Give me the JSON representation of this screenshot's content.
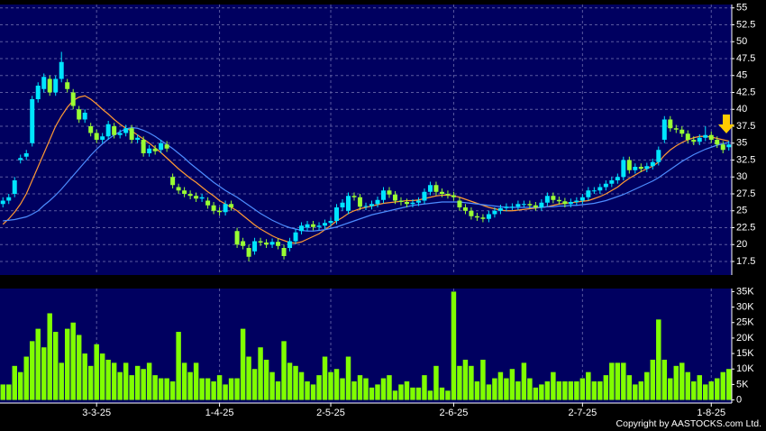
{
  "chart_data": [
    {
      "type": "candlestick",
      "open": [
        26.0,
        26.5,
        27.5,
        32.5,
        33.0,
        35.0,
        41.5,
        43.0,
        44.5,
        42.5,
        44.5,
        44.0,
        42.5,
        40.0,
        38.5,
        37.5,
        36.5,
        35.5,
        36.0,
        37.5,
        36.2,
        36.5,
        37.2,
        35.5,
        35.5,
        33.5,
        34.2,
        34.0,
        34.8,
        30.0,
        28.5,
        28.0,
        27.5,
        27.2,
        26.8,
        26.5,
        25.8,
        25.0,
        24.8,
        26.0,
        22.0,
        20.5,
        19.5,
        19.0,
        20.5,
        20.3,
        20.0,
        20.4,
        19.5,
        19.5,
        20.5,
        22.0,
        22.5,
        23.0,
        22.6,
        22.8,
        23.2,
        23.5,
        25.5,
        25.0,
        27.2,
        27.0,
        25.6,
        25.7,
        26.0,
        26.6,
        28.0,
        27.4,
        26.5,
        26.3,
        26.0,
        26.2,
        26.5,
        27.8,
        28.8,
        27.8,
        27.5,
        27.3,
        26.5,
        25.5,
        25.0,
        24.2,
        24.0,
        23.8,
        24.5,
        25.0,
        25.4,
        25.6,
        25.6,
        26.0,
        26.0,
        25.8,
        25.5,
        26.2,
        27.2,
        26.6,
        26.4,
        26.0,
        26.3,
        26.5,
        27.0,
        28.0,
        28.0,
        28.5,
        29.0,
        29.5,
        30.0,
        32.5,
        31.0,
        31.5,
        31.2,
        31.6,
        32.2,
        35.5,
        38.5,
        37.2,
        37.0,
        36.4,
        35.5,
        35.2,
        35.8,
        36.2,
        35.5,
        34.8,
        34.4
      ],
      "high": [
        27.0,
        27.5,
        30.0,
        33.3,
        34.0,
        42.0,
        44.0,
        45.3,
        45.0,
        45.0,
        48.5,
        44.5,
        43.0,
        40.5,
        40.0,
        38.0,
        37.0,
        36.5,
        38.3,
        38.0,
        37.0,
        37.7,
        37.7,
        36.3,
        36.0,
        34.7,
        34.7,
        35.5,
        35.3,
        30.5,
        29.0,
        28.5,
        28.0,
        27.7,
        27.5,
        27.0,
        26.3,
        25.5,
        26.5,
        26.5,
        22.5,
        21.0,
        20.0,
        21.0,
        21.0,
        20.8,
        20.9,
        20.9,
        20.0,
        21.0,
        22.3,
        23.3,
        23.5,
        23.5,
        23.3,
        23.7,
        24.0,
        26.0,
        26.7,
        27.7,
        27.7,
        27.5,
        26.2,
        26.5,
        27.1,
        28.5,
        28.5,
        27.9,
        27.0,
        26.8,
        26.7,
        27.0,
        28.3,
        29.3,
        29.3,
        28.3,
        28.0,
        27.8,
        27.0,
        26.0,
        25.5,
        24.7,
        24.5,
        25.0,
        25.5,
        25.9,
        26.1,
        26.1,
        26.5,
        26.5,
        26.5,
        26.3,
        26.7,
        27.7,
        27.7,
        27.1,
        26.9,
        26.8,
        27.0,
        27.5,
        28.5,
        28.5,
        29.0,
        29.5,
        30.0,
        30.5,
        33.0,
        33.0,
        32.0,
        32.0,
        32.1,
        32.7,
        34.5,
        39.0,
        39.0,
        37.7,
        37.5,
        36.9,
        36.0,
        36.3,
        37.5,
        36.7,
        36.0,
        35.3,
        35.3
      ],
      "low": [
        25.5,
        26.0,
        27.0,
        32.0,
        32.5,
        34.5,
        41.0,
        42.5,
        42.0,
        42.0,
        44.0,
        42.5,
        40.0,
        38.0,
        38.0,
        36.0,
        35.0,
        35.0,
        35.5,
        35.7,
        35.7,
        36.0,
        35.0,
        35.0,
        33.0,
        33.0,
        33.3,
        33.5,
        33.7,
        28.3,
        27.5,
        27.0,
        26.7,
        26.3,
        26.3,
        25.3,
        24.5,
        24.3,
        24.3,
        25.0,
        19.5,
        19.3,
        17.5,
        18.5,
        19.8,
        19.5,
        19.5,
        19.3,
        17.8,
        19.0,
        20.0,
        21.5,
        22.0,
        22.1,
        22.1,
        22.3,
        22.7,
        23.0,
        25.0,
        24.5,
        26.5,
        25.1,
        25.1,
        25.2,
        25.5,
        26.1,
        26.9,
        26.0,
        25.8,
        25.5,
        25.5,
        25.7,
        26.0,
        27.3,
        27.3,
        27.0,
        26.8,
        26.5,
        25.0,
        24.5,
        23.7,
        23.5,
        23.3,
        23.3,
        24.0,
        24.5,
        24.9,
        25.1,
        25.1,
        25.5,
        25.3,
        25.0,
        25.0,
        25.7,
        26.1,
        25.9,
        25.5,
        25.5,
        25.8,
        26.0,
        26.5,
        27.5,
        27.5,
        28.0,
        28.5,
        29.0,
        29.5,
        30.5,
        30.5,
        30.7,
        30.7,
        31.1,
        31.7,
        35.0,
        36.7,
        36.5,
        35.9,
        35.0,
        34.7,
        34.7,
        35.3,
        35.0,
        34.3,
        33.5,
        33.9
      ],
      "close": [
        26.5,
        27.0,
        29.5,
        32.8,
        33.5,
        41.5,
        43.5,
        44.8,
        42.5,
        44.5,
        47.0,
        43.0,
        40.5,
        38.5,
        39.5,
        36.5,
        35.5,
        36.0,
        37.8,
        36.2,
        36.5,
        37.2,
        35.5,
        35.8,
        33.5,
        34.2,
        33.8,
        35.0,
        34.2,
        28.8,
        28.0,
        27.5,
        27.2,
        26.8,
        27.0,
        25.8,
        25.0,
        24.8,
        26.0,
        25.5,
        20.0,
        19.8,
        18.2,
        20.5,
        20.3,
        20.0,
        20.4,
        19.8,
        18.3,
        20.5,
        21.8,
        22.8,
        23.0,
        22.6,
        22.8,
        23.2,
        23.5,
        25.5,
        26.2,
        27.2,
        27.0,
        25.6,
        25.7,
        26.0,
        26.6,
        28.0,
        27.4,
        26.5,
        26.3,
        26.0,
        26.2,
        26.5,
        27.8,
        28.8,
        27.8,
        27.5,
        27.3,
        27.0,
        25.5,
        25.0,
        24.2,
        24.0,
        23.8,
        24.5,
        25.0,
        25.4,
        25.6,
        25.6,
        26.0,
        26.0,
        25.8,
        25.5,
        26.2,
        27.2,
        26.6,
        26.4,
        26.0,
        26.3,
        26.5,
        27.0,
        28.0,
        28.0,
        28.5,
        29.0,
        29.5,
        30.0,
        32.5,
        31.0,
        31.5,
        31.2,
        31.6,
        32.2,
        34.0,
        38.5,
        37.2,
        37.0,
        36.4,
        35.5,
        35.2,
        35.8,
        36.2,
        35.5,
        34.8,
        34.0,
        34.8
      ],
      "up_color": "#00e5ff",
      "down_color": "#99ff33",
      "series": [
        {
          "color": "#ff9933",
          "values": [
            23.0,
            23.8,
            24.8,
            26.0,
            27.5,
            29.5,
            31.5,
            33.5,
            35.5,
            37.5,
            39.0,
            40.3,
            41.3,
            41.8,
            42.0,
            41.5,
            40.8,
            40.0,
            39.3,
            38.5,
            37.8,
            37.2,
            36.8,
            36.2,
            35.6,
            35.0,
            34.3,
            33.6,
            32.8,
            32.0,
            31.2,
            30.5,
            29.8,
            29.2,
            28.5,
            27.8,
            27.2,
            26.5,
            26.0,
            25.5,
            25.0,
            24.3,
            23.6,
            22.9,
            22.3,
            21.8,
            21.3,
            20.9,
            20.6,
            20.3,
            20.2,
            20.4,
            20.8,
            21.2,
            21.6,
            22.2,
            22.8,
            23.5,
            24.0,
            24.6,
            25.0,
            25.3,
            25.5,
            25.7,
            25.9,
            26.1,
            26.2,
            26.3,
            26.4,
            26.5,
            26.5,
            26.6,
            26.8,
            27.0,
            27.2,
            27.3,
            27.3,
            27.2,
            27.0,
            26.7,
            26.4,
            26.1,
            25.8,
            25.5,
            25.3,
            25.1,
            25.0,
            25.0,
            25.1,
            25.2,
            25.3,
            25.4,
            25.5,
            25.6,
            25.8,
            26.0,
            26.1,
            26.2,
            26.3,
            26.4,
            26.5,
            26.8,
            27.1,
            27.5,
            28.0,
            28.5,
            29.2,
            29.8,
            30.3,
            30.8,
            31.2,
            31.6,
            32.2,
            33.2,
            34.0,
            34.6,
            35.1,
            35.5,
            35.8,
            36.0,
            36.0,
            35.9,
            35.7,
            35.5,
            35.3
          ]
        },
        {
          "color": "#4d8cff",
          "values": [
            23.5,
            23.6,
            23.7,
            23.9,
            24.1,
            24.5,
            25.0,
            25.8,
            26.5,
            27.3,
            28.2,
            29.2,
            30.2,
            31.2,
            32.2,
            33.2,
            34.1,
            34.9,
            35.6,
            36.2,
            36.7,
            37.1,
            37.3,
            37.2,
            36.9,
            36.5,
            36.0,
            35.4,
            34.8,
            34.2,
            33.5,
            32.8,
            32.0,
            31.3,
            30.6,
            29.9,
            29.2,
            28.6,
            28.0,
            27.5,
            27.0,
            26.4,
            25.8,
            25.2,
            24.6,
            24.1,
            23.6,
            23.2,
            22.8,
            22.5,
            22.3,
            22.1,
            22.0,
            22.0,
            22.1,
            22.2,
            22.4,
            22.6,
            22.9,
            23.2,
            23.5,
            23.8,
            24.1,
            24.4,
            24.6,
            24.8,
            25.0,
            25.2,
            25.4,
            25.6,
            25.8,
            25.9,
            26.0,
            26.1,
            26.2,
            26.3,
            26.3,
            26.3,
            26.3,
            26.2,
            26.1,
            26.0,
            25.9,
            25.8,
            25.7,
            25.6,
            25.5,
            25.5,
            25.5,
            25.5,
            25.5,
            25.5,
            25.5,
            25.6,
            25.6,
            25.7,
            25.7,
            25.8,
            25.8,
            25.9,
            26.0,
            26.1,
            26.3,
            26.5,
            26.8,
            27.1,
            27.4,
            27.8,
            28.2,
            28.6,
            29.0,
            29.4,
            29.9,
            30.5,
            31.1,
            31.7,
            32.3,
            32.8,
            33.3,
            33.7,
            34.1,
            34.4,
            34.7,
            34.9,
            35.1
          ]
        }
      ],
      "ylim": [
        15.5,
        55.5
      ],
      "yticks": [
        17.5,
        20,
        22.5,
        25,
        27.5,
        30,
        32.5,
        35,
        37.5,
        40,
        42.5,
        45,
        47.5,
        50,
        52.5,
        55
      ],
      "grid": true
    },
    {
      "type": "bar",
      "categories": [
        null,
        null,
        null,
        null,
        null,
        null,
        null,
        null,
        null,
        null,
        null,
        null,
        null,
        null,
        null,
        null,
        "3-3-25",
        null,
        null,
        null,
        null,
        null,
        null,
        null,
        null,
        null,
        null,
        null,
        null,
        null,
        null,
        null,
        null,
        null,
        null,
        null,
        null,
        "1-4-25",
        null,
        null,
        null,
        null,
        null,
        null,
        null,
        null,
        null,
        null,
        null,
        null,
        null,
        null,
        null,
        null,
        null,
        null,
        "2-5-25",
        null,
        null,
        null,
        null,
        null,
        null,
        null,
        null,
        null,
        null,
        null,
        null,
        null,
        null,
        null,
        null,
        null,
        null,
        null,
        null,
        "2-6-25",
        null,
        null,
        null,
        null,
        null,
        null,
        null,
        null,
        null,
        null,
        null,
        null,
        null,
        null,
        null,
        null,
        null,
        null,
        null,
        null,
        null,
        "2-7-25",
        null,
        null,
        null,
        null,
        null,
        null,
        null,
        null,
        null,
        null,
        null,
        null,
        null,
        null,
        null,
        null,
        null,
        null,
        null,
        null,
        null,
        "1-8-25",
        null,
        null,
        null
      ],
      "values": [
        5000,
        5000,
        11000,
        9000,
        14000,
        19000,
        23000,
        17000,
        28000,
        22000,
        12000,
        23000,
        25000,
        21000,
        15000,
        11000,
        18000,
        15000,
        13000,
        12000,
        9000,
        12000,
        8000,
        11000,
        10000,
        12000,
        8000,
        7000,
        7000,
        6000,
        22000,
        12000,
        9000,
        12000,
        7000,
        7000,
        6000,
        8000,
        5000,
        7000,
        7000,
        23000,
        14000,
        10000,
        17000,
        13000,
        9000,
        6000,
        19000,
        12000,
        11000,
        9000,
        6000,
        5000,
        8000,
        14000,
        9000,
        10000,
        7000,
        14000,
        6000,
        8000,
        7000,
        4000,
        5000,
        7000,
        8000,
        3000,
        5000,
        6000,
        4000,
        4000,
        8000,
        3000,
        11000,
        4000,
        3000,
        35000,
        11000,
        13000,
        11000,
        6000,
        13000,
        5000,
        7000,
        9000,
        7000,
        10000,
        6000,
        12000,
        7000,
        4000,
        5000,
        6000,
        9000,
        6000,
        6000,
        6000,
        6000,
        7000,
        9000,
        6000,
        6000,
        8000,
        12000,
        12000,
        12000,
        8000,
        5000,
        6000,
        9000,
        13000,
        26000,
        13000,
        7000,
        11000,
        12000,
        9000,
        6000,
        8000,
        5000,
        6000,
        7000,
        9000,
        10000
      ],
      "color": "#80ff00",
      "ylim": [
        -1000,
        36000
      ],
      "yticks": [
        0,
        {
          "value": 5000,
          "label": "5K"
        },
        {
          "value": 10000,
          "label": "10K"
        },
        {
          "value": 15000,
          "label": "15K"
        },
        {
          "value": 20000,
          "label": "20K"
        },
        {
          "value": 25000,
          "label": "25K"
        },
        {
          "value": 30000,
          "label": "30K"
        },
        {
          "value": 35000,
          "label": "35K"
        }
      ],
      "grid": true
    }
  ],
  "footer": "Copyright by AASTOCKS.com Ltd."
}
